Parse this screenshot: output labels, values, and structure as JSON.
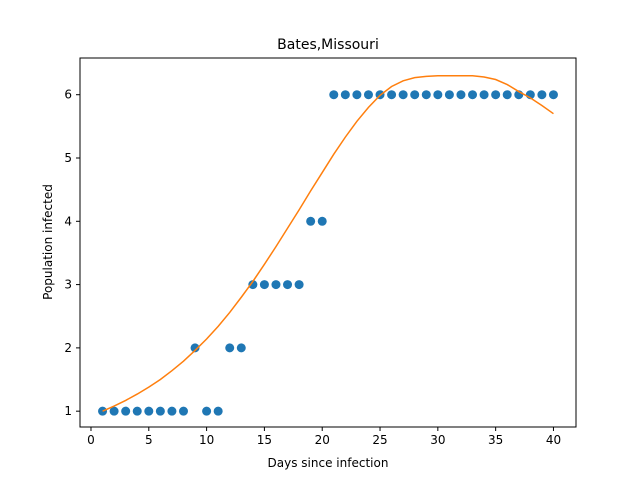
{
  "chart_data": {
    "type": "scatter",
    "title": "Bates,Missouri",
    "xlabel": "Days since infection",
    "ylabel": "Population infected",
    "xlim": [
      -0.95,
      41.95
    ],
    "ylim": [
      0.75,
      6.58
    ],
    "xticks": [
      0,
      5,
      10,
      15,
      20,
      25,
      30,
      35,
      40
    ],
    "yticks": [
      1,
      2,
      3,
      4,
      5,
      6
    ],
    "grid": false,
    "legend": "none",
    "series": [
      {
        "kind": "scatter",
        "color": "#1f77b4",
        "x": [
          1,
          2,
          3,
          4,
          5,
          6,
          7,
          8,
          9,
          10,
          11,
          12,
          13,
          14,
          15,
          16,
          17,
          18,
          19,
          20,
          21,
          22,
          23,
          24,
          25,
          26,
          27,
          28,
          29,
          30,
          31,
          32,
          33,
          34,
          35,
          36,
          37,
          38,
          39,
          40
        ],
        "y": [
          1,
          1,
          1,
          1,
          1,
          1,
          1,
          1,
          2,
          1,
          1,
          2,
          2,
          3,
          3,
          3,
          3,
          3,
          4,
          4,
          6,
          6,
          6,
          6,
          6,
          6,
          6,
          6,
          6,
          6,
          6,
          6,
          6,
          6,
          6,
          6,
          6,
          6,
          6,
          6
        ]
      },
      {
        "kind": "line",
        "color": "#ff7f0e",
        "x": [
          1,
          2,
          3,
          4,
          5,
          6,
          7,
          8,
          9,
          10,
          11,
          12,
          13,
          14,
          15,
          16,
          17,
          18,
          19,
          20,
          21,
          22,
          23,
          24,
          25,
          26,
          27,
          28,
          29,
          30,
          31,
          32,
          33,
          34,
          35,
          36,
          37,
          38,
          39,
          40
        ],
        "y": [
          1.0,
          1.08,
          1.17,
          1.27,
          1.38,
          1.5,
          1.64,
          1.79,
          1.96,
          2.14,
          2.34,
          2.56,
          2.8,
          3.05,
          3.32,
          3.6,
          3.89,
          4.18,
          4.48,
          4.77,
          5.06,
          5.33,
          5.58,
          5.8,
          5.99,
          6.13,
          6.22,
          6.27,
          6.29,
          6.3,
          6.3,
          6.3,
          6.3,
          6.28,
          6.24,
          6.16,
          6.05,
          5.95,
          5.83,
          5.7
        ]
      }
    ]
  }
}
